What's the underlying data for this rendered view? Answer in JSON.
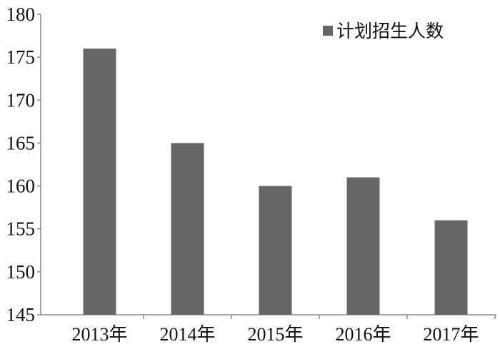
{
  "chart_data": {
    "type": "bar",
    "categories": [
      "2013年",
      "2014年",
      "2015年",
      "2016年",
      "2017年"
    ],
    "series": [
      {
        "name": "计划招生人数",
        "values": [
          176,
          165,
          160,
          161,
          156
        ]
      }
    ],
    "ylim": [
      145,
      180
    ],
    "yticks": [
      145,
      150,
      155,
      160,
      165,
      170,
      175,
      180
    ],
    "grid": false,
    "legend": "top-right",
    "bar_color": "#666666"
  }
}
